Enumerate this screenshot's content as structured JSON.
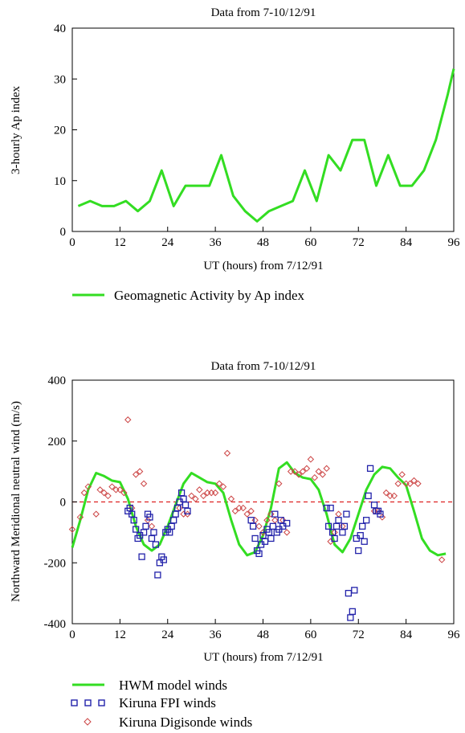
{
  "charts": [
    {
      "title": "Data from 7-10/12/91",
      "xlabel": "UT (hours) from 7/12/91",
      "ylabel": "3-hourly Ap index",
      "x_ticks": [
        "0",
        "12",
        "24",
        "36",
        "48",
        "60",
        "72",
        "84",
        "96"
      ],
      "y_ticks": [
        "0",
        "10",
        "20",
        "30",
        "40"
      ],
      "legend": [
        "Geomagnetic Activity by Ap index"
      ]
    },
    {
      "title": "Data from 7-10/12/91",
      "xlabel": "UT (hours) from 7/12/91",
      "ylabel": "Northward Meridional neutral wind (m/s)",
      "x_ticks": [
        "0",
        "12",
        "24",
        "36",
        "48",
        "60",
        "72",
        "84",
        "96"
      ],
      "y_ticks": [
        "-400",
        "-200",
        "0",
        "200",
        "400"
      ],
      "legend": [
        "HWM model winds",
        "Kiruna FPI winds",
        "Kiruna Digisonde winds"
      ]
    }
  ],
  "colors": {
    "hwm": "#33dd22",
    "fpi": "#2222aa",
    "digisonde": "#cc4444",
    "zero_line": "#dd2222",
    "ap": "#33dd22"
  },
  "chart_data": [
    {
      "type": "line",
      "title": "Data from 7-10/12/91",
      "xlabel": "UT (hours) from 7/12/91",
      "ylabel": "3-hourly Ap index",
      "xlim": [
        0,
        96
      ],
      "ylim": [
        0,
        40
      ],
      "series": [
        {
          "name": "Geomagnetic Activity by Ap index",
          "x": [
            1.5,
            4.5,
            7.5,
            10.5,
            13.5,
            16.5,
            19.5,
            22.5,
            25.5,
            28.5,
            31.5,
            34.5,
            37.5,
            40.5,
            43.5,
            46.5,
            49.5,
            52.5,
            55.5,
            58.5,
            61.5,
            64.5,
            67.5,
            70.5,
            73.5,
            76.5,
            79.5,
            82.5,
            85.5,
            88.5,
            91.5,
            94.5,
            96
          ],
          "y": [
            5,
            6,
            5,
            5,
            6,
            4,
            6,
            12,
            5,
            9,
            9,
            9,
            15,
            7,
            4,
            2,
            4,
            5,
            6,
            12,
            6,
            15,
            12,
            18,
            18,
            9,
            15,
            9,
            9,
            12,
            18,
            27,
            32
          ]
        }
      ]
    },
    {
      "type": "scatter",
      "title": "Data from 7-10/12/91",
      "xlabel": "UT (hours) from 7/12/91",
      "ylabel": "Northward Meridional neutral wind (m/s)",
      "xlim": [
        0,
        96
      ],
      "ylim": [
        -400,
        400
      ],
      "series": [
        {
          "name": "HWM model winds",
          "kind": "line",
          "x": [
            0,
            2,
            4,
            6,
            8,
            10,
            12,
            14,
            16,
            18,
            20,
            22,
            24,
            26,
            28,
            30,
            32,
            34,
            36,
            38,
            40,
            42,
            44,
            46,
            48,
            50,
            52,
            54,
            56,
            58,
            60,
            62,
            64,
            66,
            68,
            70,
            72,
            74,
            76,
            78,
            80,
            82,
            84,
            86,
            88,
            90,
            92,
            94
          ],
          "y": [
            -150,
            -60,
            40,
            95,
            85,
            70,
            65,
            10,
            -80,
            -140,
            -160,
            -140,
            -80,
            -10,
            60,
            95,
            80,
            65,
            60,
            30,
            -60,
            -140,
            -175,
            -165,
            -110,
            -20,
            110,
            130,
            95,
            80,
            75,
            40,
            -40,
            -140,
            -165,
            -120,
            -40,
            40,
            90,
            115,
            110,
            80,
            55,
            -30,
            -120,
            -160,
            -175,
            -170
          ]
        },
        {
          "name": "Kiruna FPI winds",
          "kind": "squares",
          "x": [
            14,
            14.5,
            15,
            15.5,
            16,
            16.5,
            17,
            17.5,
            18,
            18.5,
            19,
            19.5,
            20,
            20.5,
            21,
            21.5,
            22,
            22.5,
            23,
            23.5,
            24,
            24.5,
            25,
            25.5,
            26,
            26.5,
            27,
            27.5,
            28,
            28.5,
            29,
            45,
            45.5,
            46,
            46.5,
            47,
            47.5,
            48,
            48.5,
            49,
            49.5,
            50,
            50.5,
            51,
            51.5,
            52,
            52.5,
            53,
            54,
            64,
            64.5,
            65,
            65.5,
            66,
            66.5,
            67,
            68,
            68.5,
            69,
            69.5,
            70,
            70.5,
            71,
            71.5,
            72,
            72.5,
            73,
            73.5,
            74,
            74.5,
            75,
            76,
            76.5,
            77,
            77.5
          ],
          "y": [
            -30,
            -20,
            -40,
            -60,
            -90,
            -120,
            -110,
            -180,
            -100,
            -80,
            -40,
            -50,
            -120,
            -100,
            -140,
            -240,
            -200,
            -180,
            -190,
            -100,
            -90,
            -100,
            -80,
            -60,
            -40,
            -20,
            0,
            30,
            10,
            -10,
            -30,
            -60,
            -80,
            -120,
            -160,
            -170,
            -140,
            -110,
            -130,
            -90,
            -100,
            -120,
            -80,
            -40,
            -100,
            -90,
            -60,
            -80,
            -70,
            -20,
            -80,
            -20,
            -100,
            -120,
            -80,
            -60,
            -100,
            -80,
            -40,
            -300,
            -380,
            -360,
            -290,
            -120,
            -160,
            -110,
            -80,
            -130,
            -60,
            20,
            110,
            -10,
            -30,
            -30,
            -40
          ],
          "note": "approximate"
        },
        {
          "name": "Kiruna Digisonde winds",
          "kind": "diamonds",
          "x": [
            0,
            2,
            3,
            4,
            6,
            7,
            8,
            9,
            10,
            11,
            12,
            13,
            14,
            15,
            16,
            17,
            18,
            19,
            20,
            27,
            28,
            29,
            30,
            31,
            32,
            33,
            34,
            35,
            36,
            37,
            38,
            39,
            40,
            41,
            42,
            43,
            44,
            45,
            46,
            47,
            48,
            49,
            50,
            51,
            52,
            53,
            54,
            55,
            56,
            57,
            58,
            59,
            60,
            61,
            62,
            63,
            64,
            65,
            66,
            67,
            68,
            76,
            77,
            78,
            79,
            80,
            81,
            82,
            83,
            84,
            85,
            86,
            87,
            93
          ],
          "y": [
            -90,
            -50,
            30,
            50,
            -40,
            40,
            30,
            20,
            50,
            40,
            40,
            30,
            270,
            -20,
            90,
            100,
            60,
            -60,
            -80,
            -20,
            -40,
            -40,
            20,
            10,
            40,
            20,
            30,
            30,
            30,
            60,
            50,
            160,
            10,
            -30,
            -20,
            -20,
            -40,
            -30,
            -60,
            -80,
            -100,
            -60,
            -40,
            -60,
            60,
            -60,
            -100,
            100,
            100,
            90,
            100,
            110,
            140,
            80,
            100,
            90,
            110,
            -130,
            -100,
            -40,
            -80,
            -30,
            -30,
            -50,
            30,
            20,
            20,
            60,
            90,
            60,
            60,
            70,
            60,
            -190
          ],
          "note": "approximate"
        }
      ]
    }
  ]
}
